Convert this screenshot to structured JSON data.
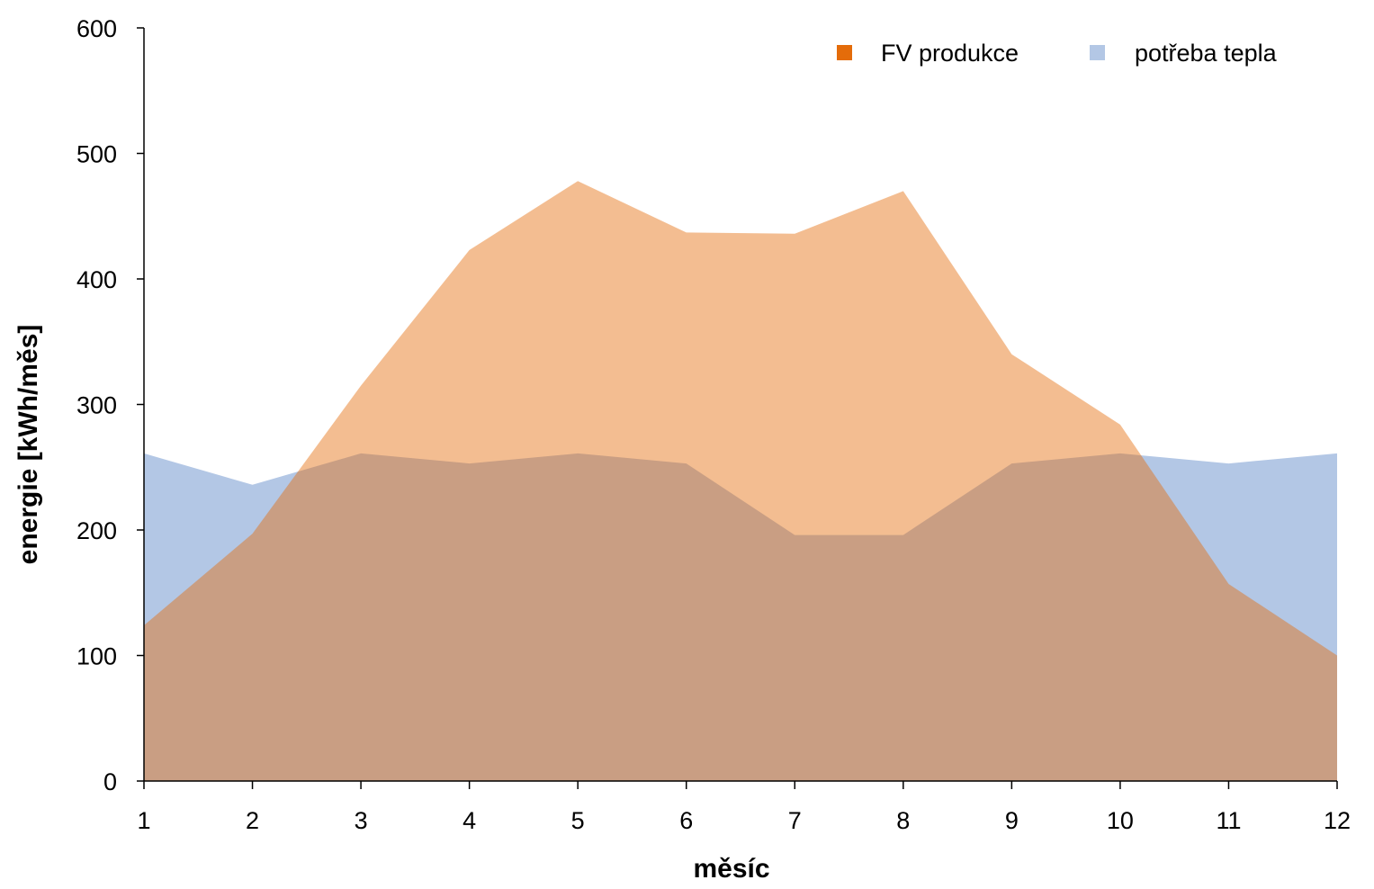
{
  "chart_data": {
    "type": "area",
    "title": "",
    "xlabel": "měsíc",
    "ylabel": "energie [kWh/měs]",
    "categories": [
      "1",
      "2",
      "3",
      "4",
      "5",
      "6",
      "7",
      "8",
      "9",
      "10",
      "11",
      "12"
    ],
    "ylim": [
      0,
      600
    ],
    "yticks": [
      "0",
      "100",
      "200",
      "300",
      "400",
      "500",
      "600"
    ],
    "grid": false,
    "legend_position": "top-right",
    "series": [
      {
        "name": "potřeba tepla",
        "color": "#b3c7e5",
        "values": [
          261,
          236,
          261,
          253,
          261,
          253,
          196,
          196,
          253,
          261,
          253,
          261
        ]
      },
      {
        "name": "FV produkce",
        "color": "#e46c0a",
        "opacity": 0.45,
        "values": [
          124,
          197,
          315,
          423,
          478,
          437,
          436,
          470,
          340,
          284,
          157,
          100
        ]
      }
    ]
  }
}
